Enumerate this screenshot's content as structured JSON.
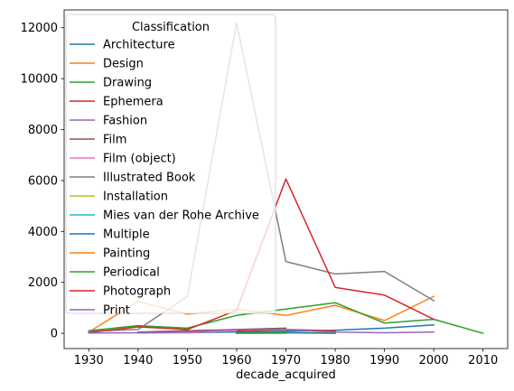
{
  "chart_data": {
    "type": "line",
    "xlabel": "decade_acquired",
    "ylabel": "",
    "xlim": [
      1925,
      2015
    ],
    "ylim": [
      -600,
      12700
    ],
    "x_ticks": [
      1930,
      1940,
      1950,
      1960,
      1970,
      1980,
      1990,
      2000,
      2010
    ],
    "y_ticks": [
      0,
      2000,
      4000,
      6000,
      8000,
      10000,
      12000
    ],
    "grid": false,
    "legend": {
      "title": "Classification",
      "position": "upper-left"
    },
    "series": [
      {
        "name": "Architecture",
        "color": "#1f77b4",
        "x": [
          1950,
          1960,
          1970,
          1980,
          1990,
          2000
        ],
        "y": [
          20,
          50,
          80,
          120,
          200,
          330
        ]
      },
      {
        "name": "Design",
        "color": "#ff7f0e",
        "x": [
          1930,
          1940,
          1950,
          1960,
          1970,
          1980,
          1990,
          2000
        ],
        "y": [
          50,
          1250,
          750,
          950,
          700,
          1100,
          500,
          1450
        ]
      },
      {
        "name": "Drawing",
        "color": "#2ca02c",
        "x": [
          1930,
          1940,
          1950,
          1960,
          1970,
          1980,
          1990,
          2000,
          2010
        ],
        "y": [
          100,
          300,
          200,
          700,
          950,
          1200,
          400,
          550,
          0
        ]
      },
      {
        "name": "Ephemera",
        "color": "#d62728",
        "x": [
          1960,
          1970,
          1980
        ],
        "y": [
          100,
          150,
          100
        ]
      },
      {
        "name": "Fashion",
        "color": "#9467bd",
        "x": [
          1960,
          1970
        ],
        "y": [
          5,
          10
        ]
      },
      {
        "name": "Film",
        "color": "#8c564b",
        "x": [
          1940,
          1950,
          1960,
          1970
        ],
        "y": [
          50,
          100,
          150,
          200
        ]
      },
      {
        "name": "Film (object)",
        "color": "#e377c2",
        "x": [
          1940,
          1950,
          1960
        ],
        "y": [
          10,
          20,
          100
        ]
      },
      {
        "name": "Illustrated Book",
        "color": "#7f7f7f",
        "x": [
          1930,
          1940,
          1950,
          1960,
          1970,
          1980,
          1990,
          2000
        ],
        "y": [
          80,
          150,
          1450,
          12200,
          2820,
          2330,
          2430,
          1280
        ]
      },
      {
        "name": "Installation",
        "color": "#bcbd22",
        "x": [
          1960,
          1970,
          1980
        ],
        "y": [
          0,
          20,
          50
        ]
      },
      {
        "name": "Mies van der Rohe Archive",
        "color": "#17becf",
        "x": [
          1960,
          1970
        ],
        "y": [
          5,
          10
        ]
      },
      {
        "name": "Multiple",
        "color": "#1f77b4",
        "x": [
          1960,
          1970,
          1980
        ],
        "y": [
          50,
          20,
          0
        ]
      },
      {
        "name": "Painting",
        "color": "#ff7f0e",
        "x": [
          1960,
          1970
        ],
        "y": [
          0,
          0
        ]
      },
      {
        "name": "Periodical",
        "color": "#2ca02c",
        "x": [
          1960,
          1970
        ],
        "y": [
          10,
          20
        ]
      },
      {
        "name": "Photograph",
        "color": "#d62728",
        "x": [
          1930,
          1940,
          1950,
          1960,
          1970,
          1980,
          1990,
          2000
        ],
        "y": [
          30,
          250,
          150,
          900,
          6060,
          1800,
          1500,
          550
        ]
      },
      {
        "name": "Print",
        "color": "#9467bd",
        "x": [
          1930,
          1940,
          1950,
          1960,
          1970,
          1980,
          1990,
          2000
        ],
        "y": [
          10,
          20,
          50,
          150,
          150,
          50,
          20,
          50
        ]
      }
    ]
  }
}
